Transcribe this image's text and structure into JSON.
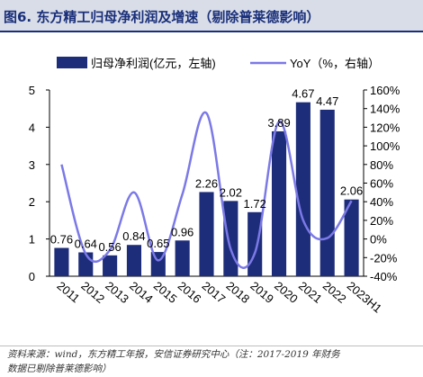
{
  "title": "图6. 东方精工归母净利润及增速（剔除普莱德影响）",
  "source_line1": "资料来源：wind，东方精工年报，安信证券研究中心（注：2017-2019 年财务",
  "source_line2": "数据已剔除普莱德影响）",
  "colors": {
    "bar": "#1e2d7a",
    "line": "#7b79e6",
    "title": "#1a2f7a",
    "title_bg": "#d8dde7"
  },
  "chart_data": {
    "type": "bar+line",
    "categories": [
      "2011",
      "2012",
      "2013",
      "2014",
      "2015",
      "2016",
      "2017",
      "2018",
      "2019",
      "2020",
      "2021",
      "2022",
      "2023H1"
    ],
    "series": [
      {
        "name": "归母净利润(亿元，左轴)",
        "type": "bar",
        "axis": "left",
        "values": [
          0.76,
          0.64,
          0.56,
          0.84,
          0.65,
          0.96,
          2.26,
          2.02,
          1.72,
          3.89,
          4.67,
          4.47,
          2.06
        ],
        "labels": [
          "0.76",
          "0.64",
          "0.56",
          "0.84",
          "0.65",
          "0.96",
          "2.26",
          "2.02",
          "1.72",
          "3.89",
          "4.67",
          "4.47",
          "2.06"
        ]
      },
      {
        "name": "YoY（%，右轴）",
        "type": "line",
        "axis": "right",
        "values": [
          80,
          -16,
          -12,
          50,
          -23,
          48,
          135,
          -11,
          -15,
          126,
          20,
          1,
          41
        ]
      }
    ],
    "y_left": {
      "min": 0,
      "max": 5,
      "ticks": [
        "0",
        "1",
        "2",
        "3",
        "4",
        "5"
      ]
    },
    "y_right": {
      "min": -40,
      "max": 160,
      "ticks": [
        "-40%",
        "-20%",
        "0%",
        "20%",
        "40%",
        "60%",
        "80%",
        "100%",
        "120%",
        "140%",
        "160%"
      ]
    },
    "legend": "top",
    "grid": false
  }
}
